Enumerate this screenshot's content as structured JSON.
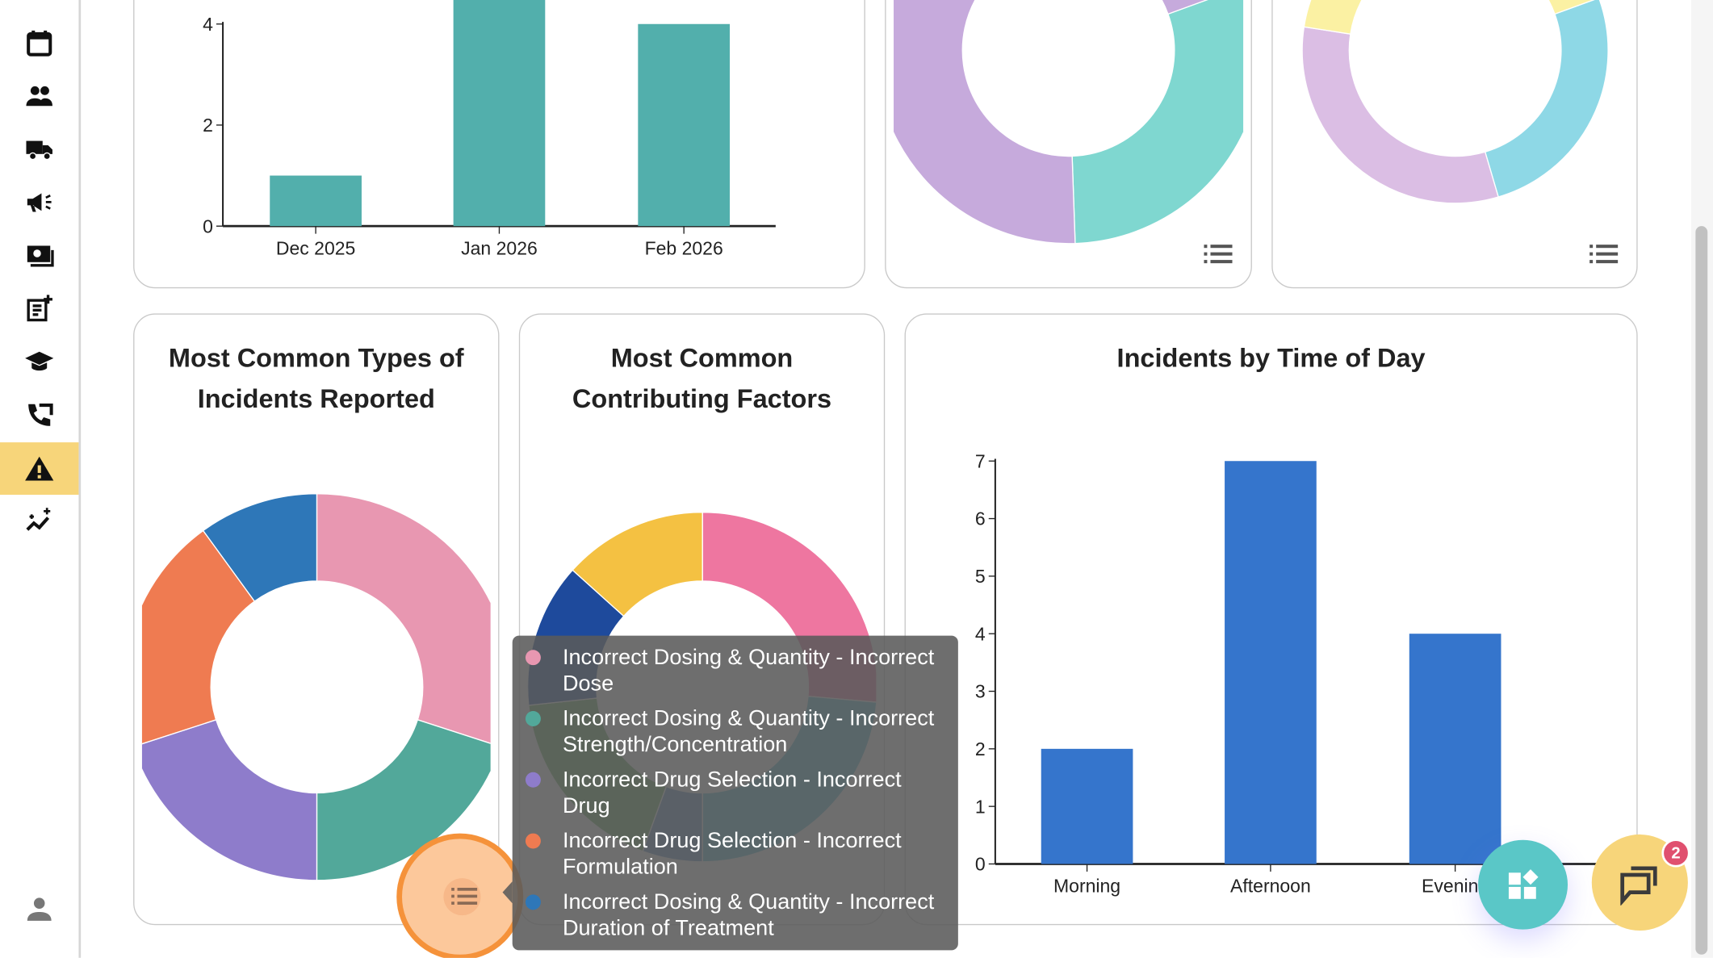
{
  "sidebar": {
    "items": [
      {
        "icon": "calendar-icon"
      },
      {
        "icon": "people-icon"
      },
      {
        "icon": "truck-icon"
      },
      {
        "icon": "megaphone-icon"
      },
      {
        "icon": "money-icon"
      },
      {
        "icon": "note-add-icon"
      },
      {
        "icon": "graduation-cap-icon"
      },
      {
        "icon": "phone-forward-icon"
      },
      {
        "icon": "warning-icon",
        "active": true
      },
      {
        "icon": "insights-icon"
      }
    ],
    "profile_icon": "person-icon",
    "active_color": "#f7d57a"
  },
  "chart_data": [
    {
      "type": "bar",
      "title": "",
      "categories": [
        "Dec 2025",
        "Jan 2026",
        "Feb 2026"
      ],
      "values": [
        1,
        5,
        4
      ],
      "y_ticks": [
        0,
        2,
        4
      ],
      "color": "#52afac",
      "note_visible": "top cropped"
    },
    {
      "type": "pie",
      "title": "",
      "donut": true,
      "slices": [
        {
          "color": "#7fd7d0",
          "value": 0.3
        },
        {
          "color": "#c6aadc",
          "value": 0.7
        }
      ]
    },
    {
      "type": "pie",
      "title": "",
      "donut": true,
      "slices": [
        {
          "color": "#8ed8e6",
          "value": 0.26
        },
        {
          "color": "#dbbee4",
          "value": 0.32
        },
        {
          "color": "#fbf1a3",
          "value": 0.42
        }
      ]
    },
    {
      "type": "pie",
      "title": "Most Common Types of Incidents Reported",
      "donut": true,
      "slices": [
        {
          "label": "Incorrect Dosing & Quantity - Incorrect Dose",
          "color": "#e897b1",
          "value": 3
        },
        {
          "label": "Incorrect Dosing & Quantity - Incorrect Strength/Concentration",
          "color": "#52a89a",
          "value": 2
        },
        {
          "label": "Incorrect Drug Selection - Incorrect Drug",
          "color": "#8e7ccb",
          "value": 2
        },
        {
          "label": "Incorrect Drug Selection - Incorrect Formulation",
          "color": "#ef7b51",
          "value": 2
        },
        {
          "label": "Incorrect Dosing & Quantity - Incorrect Duration of Treatment",
          "color": "#2e77b8",
          "value": 1
        }
      ]
    },
    {
      "type": "pie",
      "title": "Most Common Contributing Factors",
      "donut": true,
      "slices": [
        {
          "color": "#ee76a0",
          "value": 95
        },
        {
          "color": "#54bad3",
          "value": 85
        },
        {
          "color": "#5a8fc4",
          "value": 20
        },
        {
          "color": "#66ad5c",
          "value": 64
        },
        {
          "color": "#1e4a9c",
          "value": 48
        },
        {
          "color": "#f4c142",
          "value": 48
        }
      ]
    },
    {
      "type": "bar",
      "title": "Incidents by Time of Day",
      "categories": [
        "Morning",
        "Afternoon",
        "Evening"
      ],
      "values": [
        2,
        7,
        4
      ],
      "y_ticks": [
        0,
        1,
        2,
        3,
        4,
        5,
        6,
        7
      ],
      "color": "#3575cc"
    }
  ],
  "tooltip": {
    "items": [
      {
        "label": "Incorrect Dosing & Quantity - Incorrect Dose",
        "color": "#e897b1"
      },
      {
        "label": "Incorrect Dosing & Quantity - Incorrect Strength/Concentration",
        "color": "#52a89a"
      },
      {
        "label": "Incorrect Drug Selection - Incorrect Drug",
        "color": "#8e7ccb"
      },
      {
        "label": "Incorrect Drug Selection - Incorrect Formulation",
        "color": "#ef7b51"
      },
      {
        "label": "Incorrect Dosing & Quantity - Incorrect Duration of Treatment",
        "color": "#2e77b8"
      }
    ]
  },
  "fab": {
    "apps_icon": "widgets-icon",
    "chat_icon": "chat-icon",
    "chat_badge": "2"
  }
}
